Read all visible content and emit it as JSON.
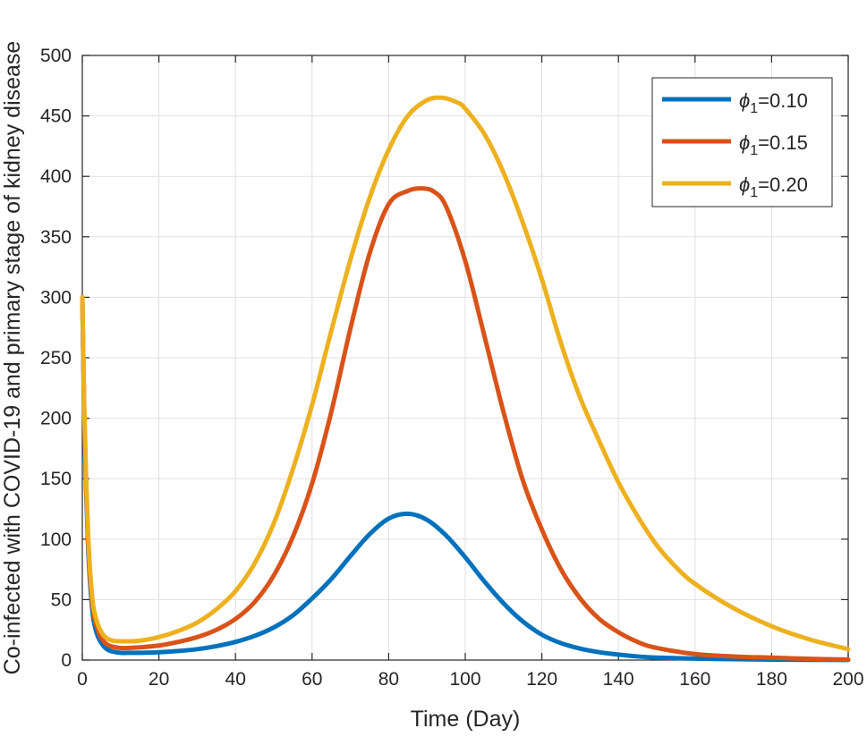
{
  "chart_data": {
    "type": "line",
    "title": "",
    "xlabel": "Time (Day)",
    "ylabel": "Co-infected with COVID-19 and primary stage of kidney disease",
    "xlim": [
      0,
      200
    ],
    "ylim": [
      0,
      500
    ],
    "xticks": [
      0,
      20,
      40,
      60,
      80,
      100,
      120,
      140,
      160,
      180,
      200
    ],
    "yticks": [
      0,
      50,
      100,
      150,
      200,
      250,
      300,
      350,
      400,
      450,
      500
    ],
    "xtick_labels": [
      "0",
      "20",
      "40",
      "60",
      "80",
      "100",
      "120",
      "140",
      "160",
      "180",
      "200"
    ],
    "ytick_labels": [
      "0",
      "50",
      "100",
      "150",
      "200",
      "250",
      "300",
      "350",
      "400",
      "450",
      "500"
    ],
    "grid": true,
    "legend_position": "top-right",
    "series": [
      {
        "name": "ϕ1=0.10",
        "legend_symbol": "ϕ",
        "legend_sub": "1",
        "legend_value": "=0.10",
        "color": "#0072BD",
        "x": [
          0,
          0.5,
          1,
          1.5,
          2,
          2.5,
          3,
          4,
          5,
          6,
          7,
          8,
          10,
          12,
          15,
          20,
          25,
          30,
          35,
          40,
          45,
          50,
          55,
          60,
          65,
          70,
          75,
          80,
          85,
          90,
          95,
          100,
          105,
          110,
          115,
          120,
          125,
          130,
          135,
          140,
          145,
          150,
          160,
          170,
          180,
          190,
          200
        ],
        "y": [
          300,
          200,
          140,
          95,
          65,
          45,
          32,
          20,
          14,
          10,
          8,
          7,
          6,
          6,
          6,
          6.5,
          7.5,
          9,
          11.5,
          15,
          20,
          27,
          37,
          51,
          67,
          86,
          104,
          117,
          121,
          116,
          103,
          85,
          65,
          47,
          32,
          21,
          14,
          9.5,
          6.5,
          4.5,
          3,
          2,
          1.2,
          0.7,
          0.4,
          0.2,
          0.1
        ]
      },
      {
        "name": "ϕ1=0.15",
        "legend_symbol": "ϕ",
        "legend_sub": "1",
        "legend_value": "=0.15",
        "color": "#D95319",
        "x": [
          0,
          0.5,
          1,
          1.5,
          2,
          2.5,
          3,
          4,
          5,
          6,
          7,
          8,
          10,
          12,
          15,
          20,
          25,
          30,
          35,
          40,
          45,
          50,
          55,
          60,
          65,
          70,
          75,
          80,
          85,
          89,
          92,
          95,
          100,
          105,
          110,
          115,
          120,
          125,
          130,
          135,
          140,
          145,
          150,
          160,
          170,
          180,
          190,
          200
        ],
        "y": [
          300,
          205,
          145,
          100,
          70,
          50,
          37,
          25,
          18,
          14,
          12,
          11,
          10,
          10,
          10.5,
          12,
          15,
          19,
          25,
          34,
          48,
          70,
          102,
          146,
          205,
          274,
          336,
          377,
          388,
          390,
          387,
          375,
          330,
          268,
          205,
          149,
          108,
          75,
          51,
          34,
          23,
          15,
          10,
          5,
          3,
          2,
          1,
          0.5
        ]
      },
      {
        "name": "ϕ1=0.20",
        "legend_symbol": "ϕ",
        "legend_sub": "1",
        "legend_value": "=0.20",
        "color": "#EDB120",
        "x": [
          0,
          0.5,
          1,
          1.5,
          2,
          2.5,
          3,
          4,
          5,
          6,
          7,
          8,
          10,
          12,
          15,
          20,
          25,
          30,
          35,
          40,
          45,
          50,
          55,
          60,
          65,
          70,
          75,
          80,
          85,
          90,
          94,
          98,
          100,
          105,
          110,
          115,
          120,
          125,
          130,
          135,
          140,
          145,
          150,
          155,
          160,
          170,
          180,
          190,
          200
        ],
        "y": [
          300,
          210,
          150,
          105,
          75,
          55,
          42,
          30,
          23,
          19,
          17,
          16,
          15.5,
          15.5,
          16,
          19,
          24,
          31,
          42,
          57,
          80,
          113,
          158,
          211,
          272,
          331,
          382,
          422,
          450,
          463,
          465,
          461,
          456,
          435,
          403,
          362,
          315,
          262,
          217,
          181,
          147,
          119,
          95,
          77,
          63,
          43,
          28,
          17,
          9
        ]
      }
    ]
  }
}
